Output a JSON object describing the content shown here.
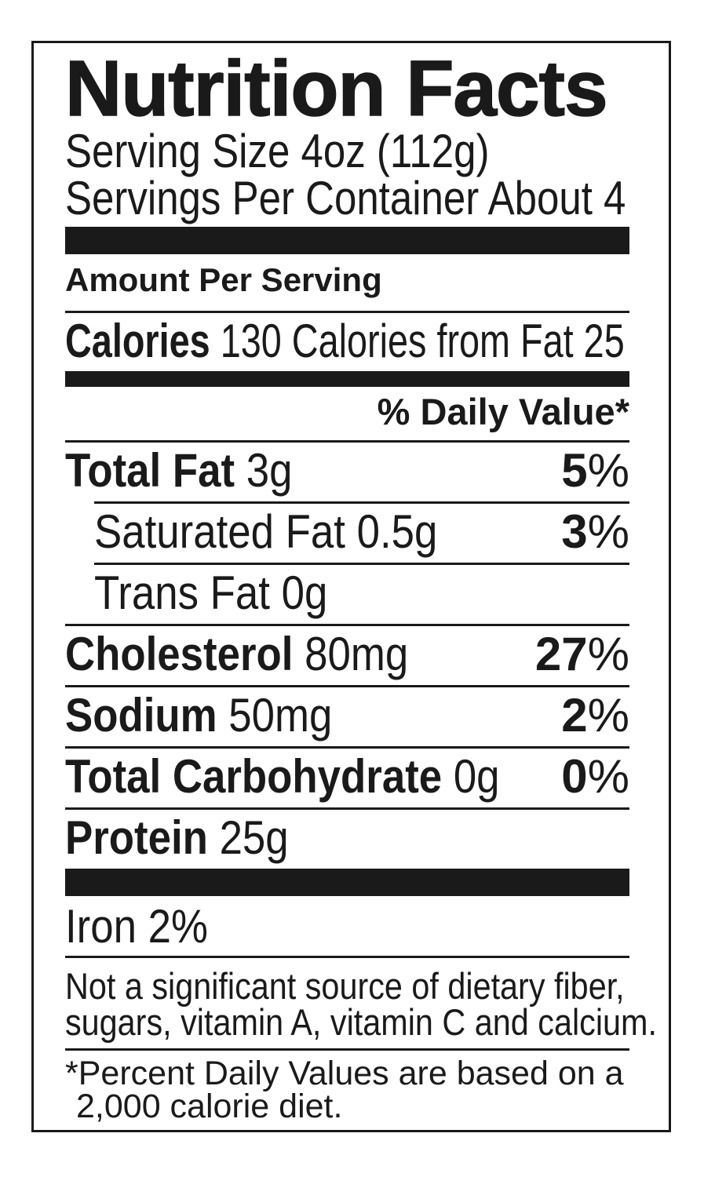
{
  "label": {
    "title": "Nutrition Facts",
    "serving_size": "Serving Size 4oz (112g)",
    "servings_per_container": "Servings Per Container About 4",
    "amount_per_serving": "Amount Per Serving",
    "calories_label": "Calories",
    "calories_value": "130",
    "calories_from_fat_label": "Calories from Fat",
    "calories_from_fat_value": "25",
    "daily_value_header": "% Daily Value*",
    "percent_sign": "%",
    "nutrients": [
      {
        "name": "Total Fat",
        "amount": "3g",
        "dv": "5"
      },
      {
        "name": "Saturated Fat",
        "amount": "0.5g",
        "dv": "3"
      },
      {
        "name": "Trans Fat",
        "amount": "0g",
        "dv": ""
      },
      {
        "name": "Cholesterol",
        "amount": "80mg",
        "dv": "27"
      },
      {
        "name": "Sodium",
        "amount": "50mg",
        "dv": "2"
      },
      {
        "name": "Total Carbohydrate",
        "amount": "0g",
        "dv": "0"
      },
      {
        "name": "Protein",
        "amount": "25g",
        "dv": ""
      }
    ],
    "iron_label": "Iron",
    "iron_value": "2%",
    "disclaimer_line1": "Not a significant source of dietary fiber,",
    "disclaimer_line2": "sugars, vitamin A, vitamin C and calcium.",
    "footnote_line1": "*Percent Daily Values are based on a",
    "footnote_line2": "2,000 calorie diet.",
    "colors": {
      "ink": "#1a1a1a",
      "background": "#ffffff"
    }
  }
}
